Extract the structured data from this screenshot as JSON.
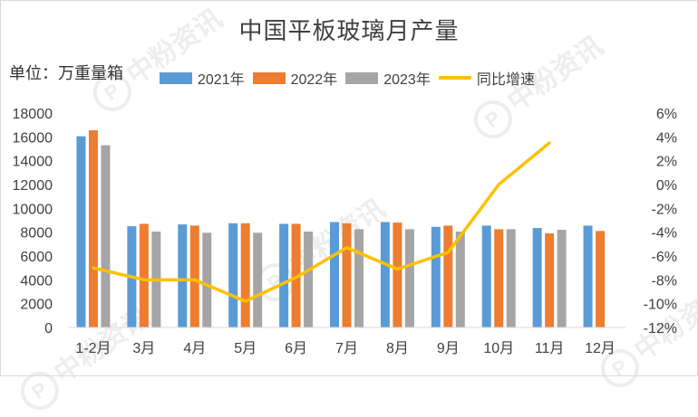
{
  "chart_data": {
    "type": "bar",
    "title": "中国平板玻璃月产量",
    "unit_label": "单位：万重量箱",
    "categories": [
      "1-2月",
      "3月",
      "4月",
      "5月",
      "6月",
      "7月",
      "8月",
      "9月",
      "10月",
      "11月",
      "12月"
    ],
    "series": [
      {
        "name": "2021年",
        "type": "bar",
        "axis": "left",
        "color": "#5B9BD5",
        "values": [
          16050,
          8500,
          8650,
          8750,
          8700,
          8850,
          8850,
          8450,
          8550,
          8350,
          8550
        ]
      },
      {
        "name": "2022年",
        "type": "bar",
        "axis": "left",
        "color": "#ED7D31",
        "values": [
          16550,
          8700,
          8550,
          8750,
          8700,
          8750,
          8800,
          8550,
          8250,
          7900,
          8100
        ]
      },
      {
        "name": "2023年",
        "type": "bar",
        "axis": "left",
        "color": "#A5A5A5",
        "values": [
          15300,
          8050,
          7950,
          7950,
          8050,
          8250,
          8250,
          8050,
          8250,
          8200,
          null
        ]
      },
      {
        "name": "同比增速",
        "type": "line",
        "axis": "right",
        "color": "#FFC000",
        "values": [
          -7.0,
          -8.0,
          -8.0,
          -9.8,
          -7.8,
          -5.3,
          -7.1,
          -5.7,
          0.0,
          3.5,
          null
        ]
      }
    ],
    "yleft": {
      "min": 0,
      "max": 18000,
      "step": 2000,
      "ticks": [
        "0",
        "2000",
        "4000",
        "6000",
        "8000",
        "10000",
        "12000",
        "14000",
        "16000",
        "18000"
      ]
    },
    "yright": {
      "min": -12,
      "max": 6,
      "step": 2,
      "ticks": [
        "-12%",
        "-10%",
        "-8%",
        "-6%",
        "-4%",
        "-2%",
        "0%",
        "2%",
        "4%",
        "6%"
      ]
    },
    "legend_position": "top",
    "grid": false
  },
  "watermark": {
    "logo": "P",
    "text": "中粉资讯"
  }
}
